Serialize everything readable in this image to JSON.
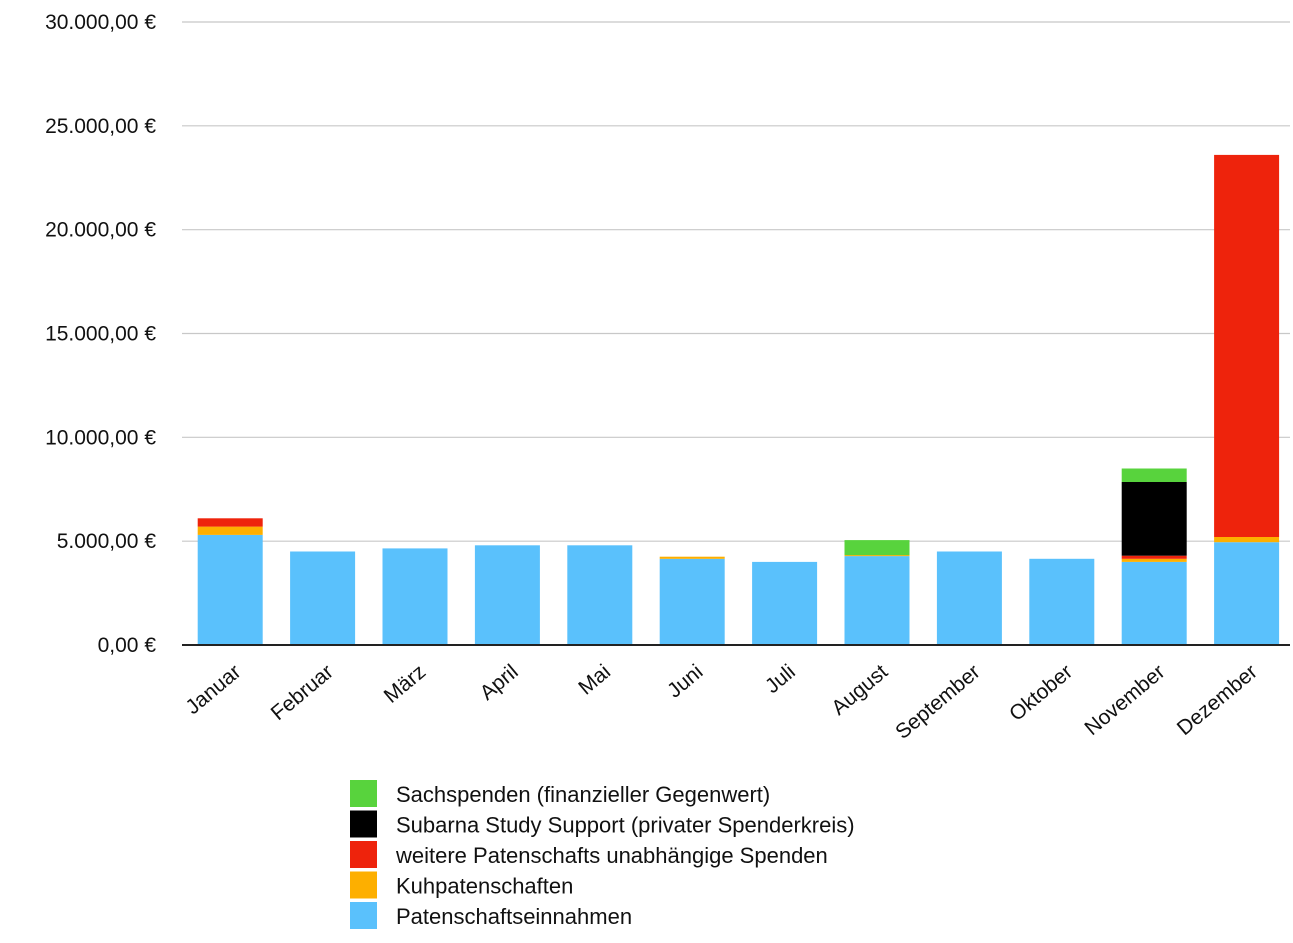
{
  "chart_data": {
    "type": "bar",
    "stacked": true,
    "categories": [
      "Januar",
      "Februar",
      "März",
      "April",
      "Mai",
      "Juni",
      "Juli",
      "August",
      "September",
      "Oktober",
      "November",
      "Dezember"
    ],
    "series": [
      {
        "name": "Patenschaftseinnahmen",
        "color": "#5AC1FC",
        "values": [
          5300,
          4500,
          4650,
          4800,
          4800,
          4150,
          4000,
          4280,
          4500,
          4150,
          4000,
          4950
        ]
      },
      {
        "name": "Kuhpatenschaften",
        "color": "#FDAF00",
        "values": [
          400,
          0,
          0,
          0,
          0,
          100,
          0,
          50,
          0,
          0,
          150,
          250
        ]
      },
      {
        "name": "weitere Patenschafts unabhängige Spenden",
        "color": "#EE230C",
        "values": [
          400,
          0,
          0,
          0,
          0,
          0,
          0,
          0,
          0,
          0,
          150,
          18400
        ]
      },
      {
        "name": "Subarna Study  Support (privater Spenderkreis)",
        "color": "#000000",
        "values": [
          0,
          0,
          0,
          0,
          0,
          0,
          0,
          0,
          0,
          0,
          3550,
          0
        ]
      },
      {
        "name": "Sachspenden (finanzieller Gegenwert)",
        "color": "#58D33D",
        "values": [
          0,
          0,
          0,
          0,
          0,
          0,
          0,
          720,
          0,
          0,
          650,
          0
        ]
      }
    ],
    "y_ticks": [
      "0,00 €",
      "5.000,00 €",
      "10.000,00 €",
      "15.000,00 €",
      "20.000,00 €",
      "25.000,00 €",
      "30.000,00 €"
    ],
    "ylim": [
      0,
      30000
    ],
    "y_tick_step": 5000,
    "grid": true,
    "legend_position": "bottom-center",
    "legend_order": [
      "Sachspenden (finanzieller Gegenwert)",
      "Subarna Study  Support (privater Spenderkreis)",
      "weitere Patenschafts unabhängige Spenden",
      "Kuhpatenschaften",
      "Patenschaftseinnahmen"
    ],
    "title": "",
    "xlabel": "",
    "ylabel": ""
  }
}
